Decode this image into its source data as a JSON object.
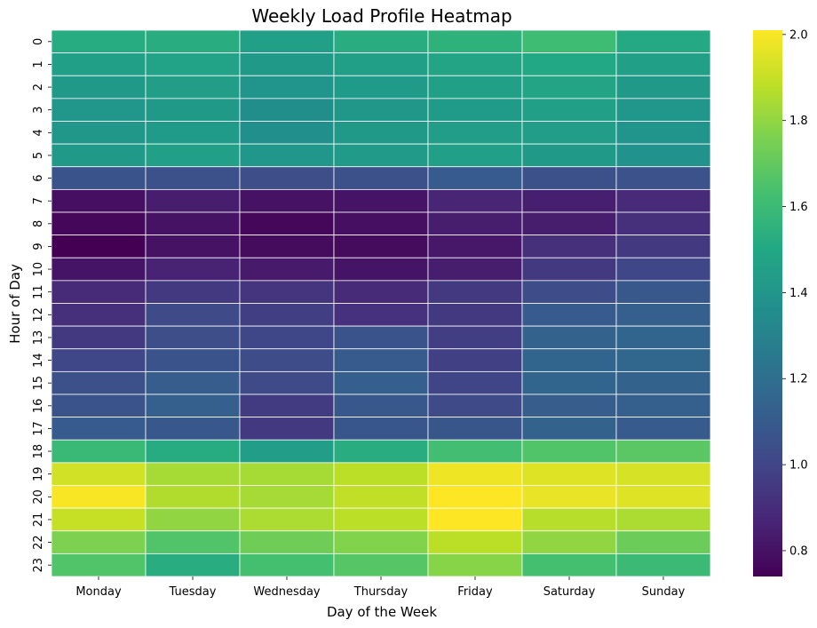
{
  "chart_data": {
    "type": "heatmap",
    "title": "Weekly Load Profile Heatmap",
    "xlabel": "Day of the Week",
    "ylabel": "Hour of Day",
    "x": [
      "Monday",
      "Tuesday",
      "Wednesday",
      "Thursday",
      "Friday",
      "Saturday",
      "Sunday"
    ],
    "y": [
      "0",
      "1",
      "2",
      "3",
      "4",
      "5",
      "6",
      "7",
      "8",
      "9",
      "10",
      "11",
      "12",
      "13",
      "14",
      "15",
      "16",
      "17",
      "18",
      "19",
      "20",
      "21",
      "22",
      "23"
    ],
    "values": [
      [
        1.52,
        1.53,
        1.46,
        1.53,
        1.55,
        1.61,
        1.51
      ],
      [
        1.45,
        1.47,
        1.42,
        1.45,
        1.48,
        1.5,
        1.46
      ],
      [
        1.42,
        1.44,
        1.39,
        1.43,
        1.45,
        1.48,
        1.42
      ],
      [
        1.4,
        1.42,
        1.36,
        1.41,
        1.43,
        1.45,
        1.4
      ],
      [
        1.41,
        1.43,
        1.37,
        1.42,
        1.44,
        1.44,
        1.39
      ],
      [
        1.42,
        1.45,
        1.4,
        1.43,
        1.46,
        1.42,
        1.38
      ],
      [
        1.07,
        1.05,
        1.04,
        1.05,
        1.1,
        1.05,
        1.06
      ],
      [
        0.79,
        0.84,
        0.8,
        0.81,
        0.87,
        0.85,
        0.89
      ],
      [
        0.76,
        0.8,
        0.76,
        0.79,
        0.84,
        0.84,
        0.91
      ],
      [
        0.74,
        0.8,
        0.78,
        0.78,
        0.82,
        0.91,
        0.95
      ],
      [
        0.81,
        0.86,
        0.83,
        0.81,
        0.84,
        0.95,
        1.01
      ],
      [
        0.89,
        0.95,
        0.93,
        0.89,
        0.95,
        1.03,
        1.09
      ],
      [
        0.91,
        1.02,
        0.97,
        0.92,
        0.95,
        1.1,
        1.12
      ],
      [
        0.95,
        1.04,
        1.01,
        1.07,
        0.97,
        1.14,
        1.15
      ],
      [
        1.01,
        1.07,
        1.03,
        1.1,
        0.98,
        1.15,
        1.16
      ],
      [
        1.05,
        1.11,
        1.02,
        1.12,
        1.0,
        1.15,
        1.14
      ],
      [
        1.07,
        1.12,
        0.96,
        1.09,
        1.02,
        1.11,
        1.12
      ],
      [
        1.1,
        1.09,
        0.95,
        1.08,
        1.08,
        1.14,
        1.1
      ],
      [
        1.59,
        1.52,
        1.44,
        1.53,
        1.62,
        1.66,
        1.68
      ],
      [
        1.92,
        1.84,
        1.84,
        1.88,
        1.98,
        1.95,
        1.93
      ],
      [
        2.0,
        1.86,
        1.84,
        1.89,
        2.01,
        1.97,
        1.95
      ],
      [
        1.9,
        1.8,
        1.85,
        1.88,
        2.01,
        1.87,
        1.85
      ],
      [
        1.76,
        1.66,
        1.73,
        1.77,
        1.88,
        1.8,
        1.72
      ],
      [
        1.66,
        1.53,
        1.63,
        1.67,
        1.78,
        1.63,
        1.6
      ]
    ],
    "colormap": "viridis",
    "vmin": 0.74,
    "vmax": 2.01,
    "colorbar": {
      "ticks": [
        0.8,
        1.0,
        1.2,
        1.4,
        1.6,
        1.8,
        2.0
      ],
      "tick_labels": [
        "0.8",
        "1.0",
        "1.2",
        "1.4",
        "1.6",
        "1.8",
        "2.0"
      ]
    },
    "grid": false,
    "cell_border_color": "#ffffff"
  }
}
